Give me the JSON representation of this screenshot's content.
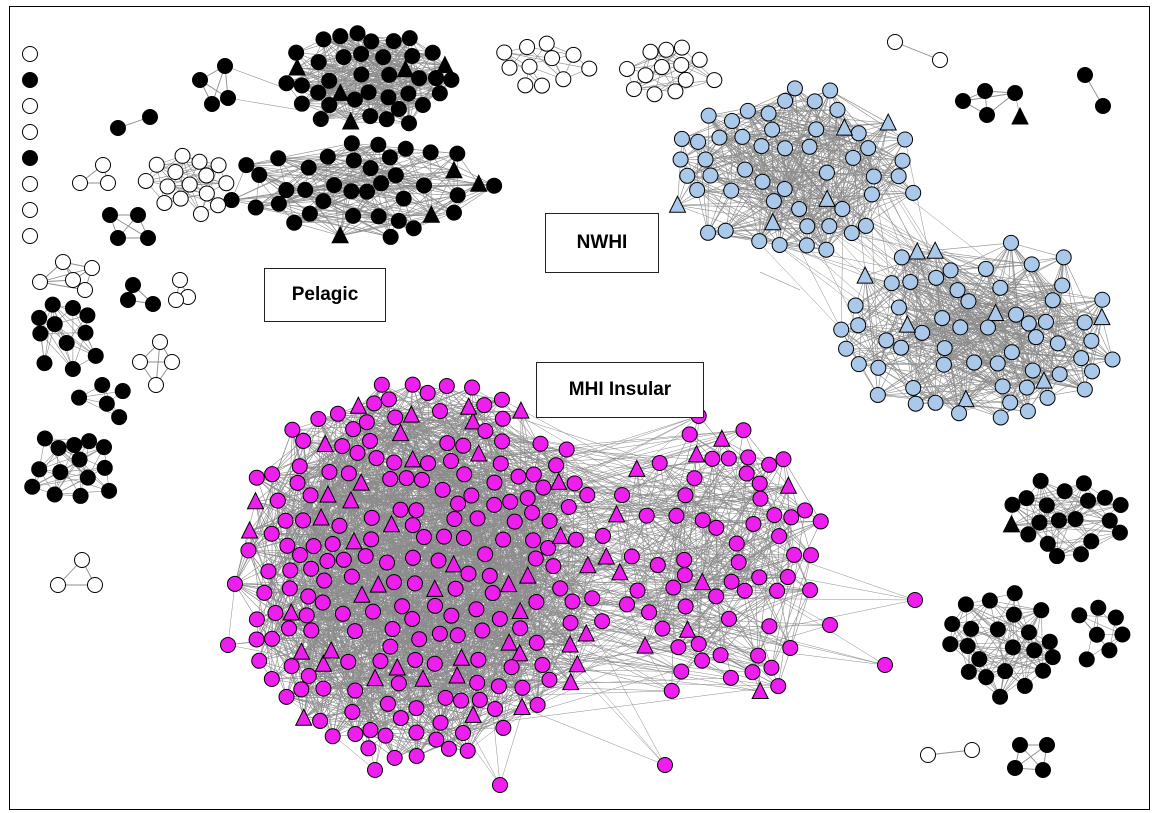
{
  "labels": {
    "pelagic": "Pelagic",
    "nwhi": "NWHI",
    "mhi_insular": "MHI Insular"
  },
  "colors": {
    "edge": "#8c8c8c",
    "node_stroke": "#000000",
    "pelagic_fill": "#000000",
    "nwhi_fill": "#a9c8ea",
    "mhi_fill": "#ee1fee",
    "other_fill": "#ffffff"
  },
  "legend_shapes": [
    "circle-node",
    "triangle-node"
  ]
}
